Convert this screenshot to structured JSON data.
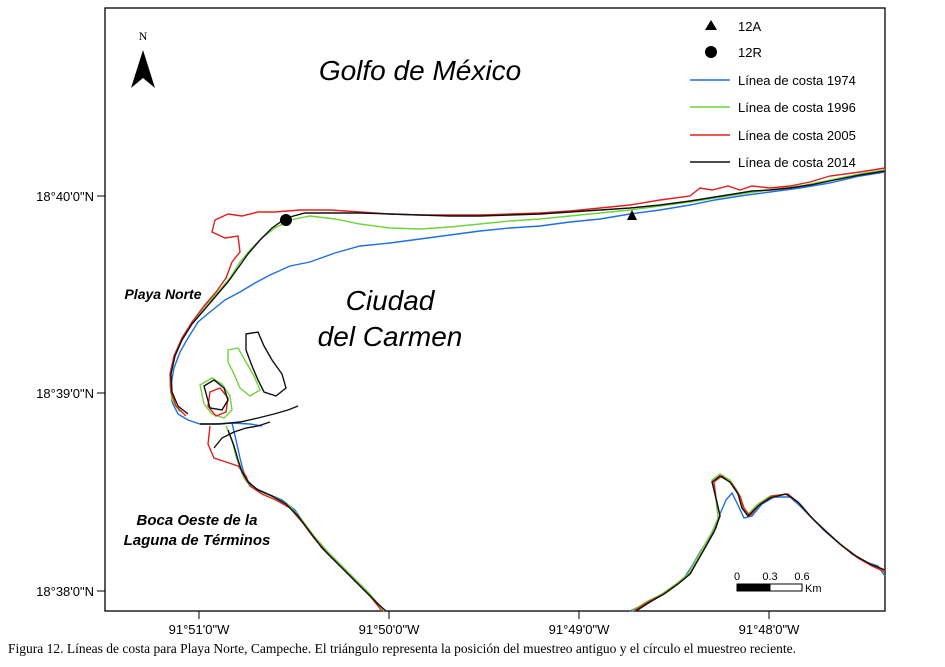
{
  "map": {
    "north_label": "N",
    "sea_label": "Golfo de México",
    "city_label_line1": "Ciudad",
    "city_label_line2": "del Carmen",
    "beach_label": "Playa Norte",
    "inlet_label_line1": "Boca Oeste de la",
    "inlet_label_line2": "Laguna de Términos"
  },
  "axes": {
    "y_ticks": [
      "18°40'0\"N",
      "18°39'0\"N",
      "18°38'0\"N"
    ],
    "x_ticks": [
      "91°51'0\"W",
      "91°50'0\"W",
      "91°49'0\"W",
      "91°48'0\"W"
    ]
  },
  "legend": {
    "items": [
      {
        "label": "12A",
        "symbol": "triangle",
        "color": "#000000"
      },
      {
        "label": "12R",
        "symbol": "circle",
        "color": "#000000"
      },
      {
        "label": "Línea de costa 1974",
        "symbol": "line",
        "color": "#1f6fe0"
      },
      {
        "label": "Línea de costa 1996",
        "symbol": "line",
        "color": "#6fd43a"
      },
      {
        "label": "Línea de costa 2005",
        "symbol": "line",
        "color": "#e0201c"
      },
      {
        "label": "Línea de costa 2014",
        "symbol": "line",
        "color": "#111111"
      }
    ]
  },
  "scale_bar": {
    "ticks": [
      "0",
      "0.3",
      "0.6"
    ],
    "unit": "Km"
  },
  "caption": "Figura 12. Líneas de costa para Playa Norte, Campeche. El triángulo representa la posición del muestreo antiguo y el círculo el muestreo reciente."
}
